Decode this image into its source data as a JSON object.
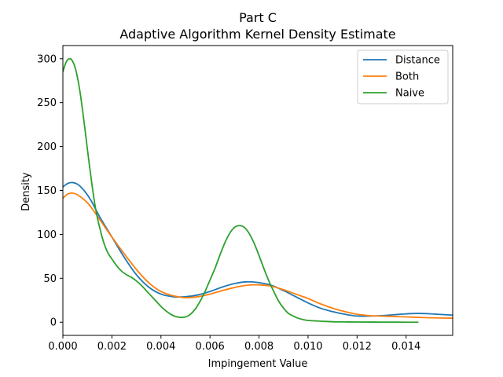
{
  "chart_data": {
    "type": "line",
    "title": "Part C",
    "subtitle": "Adaptive Algorithm Kernel Density Estimate",
    "xlabel": "Impingement Value",
    "ylabel": "Density",
    "xlim": [
      0.0,
      0.0159
    ],
    "ylim": [
      -15,
      315
    ],
    "xticks": [
      "0.000",
      "0.002",
      "0.004",
      "0.006",
      "0.008",
      "0.010",
      "0.012",
      "0.014"
    ],
    "yticks": [
      "0",
      "50",
      "100",
      "150",
      "200",
      "250",
      "300"
    ],
    "grid": false,
    "legend_position": "top-right",
    "series": [
      {
        "name": "Distance",
        "color": "#1f77b4",
        "x": [
          0.0,
          0.0002,
          0.0004,
          0.0006,
          0.0008,
          0.001,
          0.0012,
          0.0015,
          0.002,
          0.0025,
          0.003,
          0.0035,
          0.004,
          0.0045,
          0.005,
          0.0055,
          0.006,
          0.0065,
          0.007,
          0.0075,
          0.008,
          0.0085,
          0.009,
          0.0095,
          0.01,
          0.0105,
          0.011,
          0.0115,
          0.012,
          0.0125,
          0.013,
          0.0135,
          0.014,
          0.0145,
          0.015,
          0.0159
        ],
        "y": [
          154,
          158,
          159,
          157,
          152,
          145,
          136,
          120,
          97,
          74,
          54,
          40,
          32,
          29,
          29,
          31,
          35,
          40,
          44,
          46,
          45,
          42,
          36,
          29,
          22,
          16,
          12,
          9,
          7,
          7,
          7.5,
          8.5,
          9.5,
          10,
          9.5,
          8
        ]
      },
      {
        "name": "Both",
        "color": "#ff7f0e",
        "x": [
          0.0,
          0.0002,
          0.0004,
          0.0006,
          0.0008,
          0.001,
          0.0012,
          0.0015,
          0.002,
          0.0025,
          0.003,
          0.0035,
          0.004,
          0.0045,
          0.005,
          0.0055,
          0.006,
          0.0065,
          0.007,
          0.0075,
          0.008,
          0.0085,
          0.009,
          0.0095,
          0.01,
          0.0105,
          0.011,
          0.0115,
          0.012,
          0.0125,
          0.013,
          0.0135,
          0.014,
          0.0145,
          0.015,
          0.0159
        ],
        "y": [
          141,
          146,
          147,
          145,
          141,
          136,
          129,
          117,
          97,
          78,
          60,
          45,
          35,
          30,
          28,
          29,
          32,
          36,
          39.5,
          42,
          42.5,
          41,
          37,
          32,
          27,
          21,
          16,
          12,
          9,
          7.5,
          7,
          6.5,
          6,
          5.5,
          5,
          4.5
        ]
      },
      {
        "name": "Naive",
        "color": "#2ca02c",
        "x": [
          0.0,
          0.0001,
          0.0002,
          0.0003,
          0.0004,
          0.0005,
          0.0006,
          0.0007,
          0.0008,
          0.0009,
          0.001,
          0.0011,
          0.0012,
          0.0013,
          0.0014,
          0.0015,
          0.0016,
          0.0017,
          0.0018,
          0.0019,
          0.002,
          0.0022,
          0.0024,
          0.0026,
          0.0028,
          0.003,
          0.0032,
          0.0034,
          0.0036,
          0.0038,
          0.004,
          0.0042,
          0.0044,
          0.0046,
          0.0048,
          0.005,
          0.0052,
          0.0054,
          0.0056,
          0.0058,
          0.006,
          0.0062,
          0.0064,
          0.0066,
          0.0068,
          0.007,
          0.0072,
          0.0074,
          0.0076,
          0.0078,
          0.008,
          0.0082,
          0.0084,
          0.0086,
          0.0088,
          0.009,
          0.0092,
          0.0094,
          0.0096,
          0.0098,
          0.01,
          0.0103,
          0.0106,
          0.011,
          0.0115,
          0.012,
          0.013,
          0.014,
          0.0145
        ],
        "y": [
          285,
          294,
          299,
          300,
          297,
          290,
          278,
          262,
          242,
          220,
          197,
          175,
          154,
          135,
          120,
          108,
          97,
          88,
          81,
          76,
          72,
          64,
          58,
          54,
          51,
          47,
          42,
          36,
          30,
          24,
          18,
          13,
          9,
          6.5,
          5.5,
          6,
          9,
          15,
          24,
          35,
          48,
          61,
          76,
          90,
          101,
          108,
          110,
          108,
          101,
          90,
          76,
          61,
          47,
          35,
          24,
          16,
          10,
          7,
          4.5,
          3,
          2,
          1.5,
          1,
          0.5,
          0.3,
          0.2,
          0.1,
          0,
          0
        ]
      }
    ]
  }
}
